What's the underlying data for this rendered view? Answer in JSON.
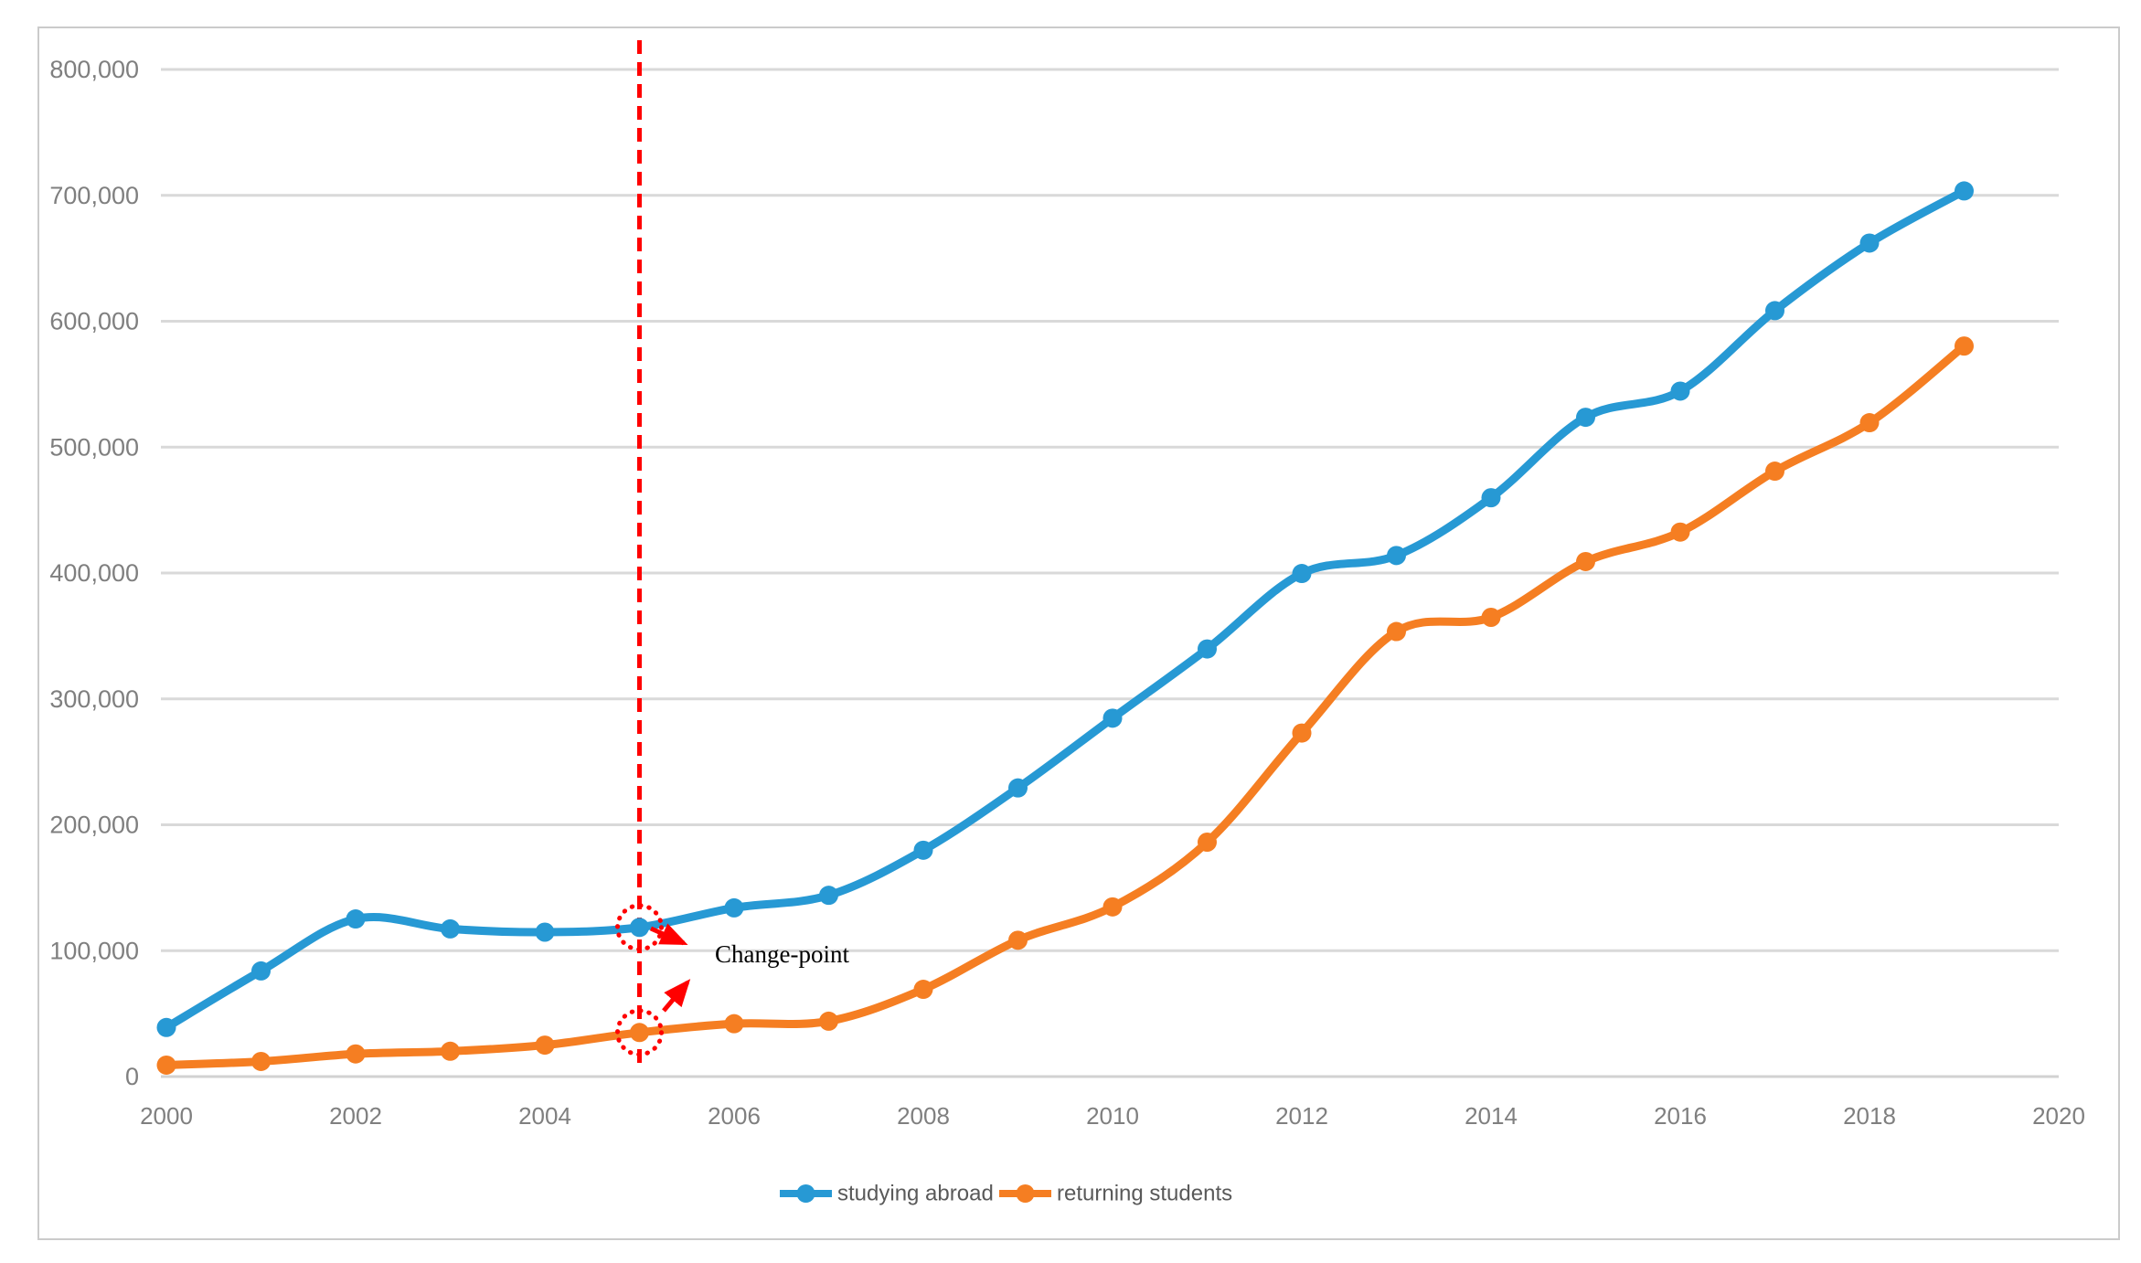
{
  "figure": {
    "background": "#FFFFFF",
    "border_color": "#CBCBCB"
  },
  "chart_data": {
    "type": "line",
    "title": "",
    "xlabel": "",
    "ylabel": "",
    "x": [
      2000,
      2001,
      2002,
      2003,
      2004,
      2005,
      2006,
      2007,
      2008,
      2009,
      2010,
      2011,
      2012,
      2013,
      2014,
      2015,
      2016,
      2017,
      2018,
      2019
    ],
    "series": [
      {
        "name": "studying abroad",
        "color": "#2799D4",
        "values": [
          39000,
          83900,
          125200,
          117300,
          114700,
          118500,
          134000,
          144000,
          179800,
          229300,
          284700,
          339700,
          399600,
          413900,
          459800,
          523700,
          544500,
          608400,
          662100,
          703500
        ]
      },
      {
        "name": "returning students",
        "color": "#F57E22",
        "values": [
          9100,
          12000,
          18000,
          20100,
          25000,
          35000,
          42000,
          44000,
          69300,
          108300,
          134800,
          186200,
          272900,
          353500,
          364800,
          409100,
          432500,
          480900,
          519400,
          580300
        ]
      }
    ],
    "xlim": [
      2000,
      2020
    ],
    "ylim": [
      0,
      800000
    ],
    "xticks": [
      2000,
      2002,
      2004,
      2006,
      2008,
      2010,
      2012,
      2014,
      2016,
      2018,
      2020
    ],
    "xtick_labels": [
      "2000",
      "2002",
      "2004",
      "2006",
      "2008",
      "2010",
      "2012",
      "2014",
      "2016",
      "2018",
      "2020"
    ],
    "ytick_step": 100000,
    "ytick_labels": [
      "0",
      "100,000",
      "200,000",
      "300,000",
      "400,000",
      "500,000",
      "600,000",
      "700,000",
      "800,000"
    ],
    "grid": "horizontal",
    "gridline_color": "#D9D9D9",
    "axis_line_color": "#D2D2D2",
    "tick_label_color": "#7F7F7F",
    "smoothed": true,
    "marker": "circle",
    "legend_position": "bottom",
    "legend_text_color": "#595959",
    "annotation": {
      "label": "Change-point",
      "year": 2005,
      "accent_color": "#FF0000",
      "text_color": "#000000",
      "circled_series_values": [
        118500,
        35000
      ]
    }
  }
}
